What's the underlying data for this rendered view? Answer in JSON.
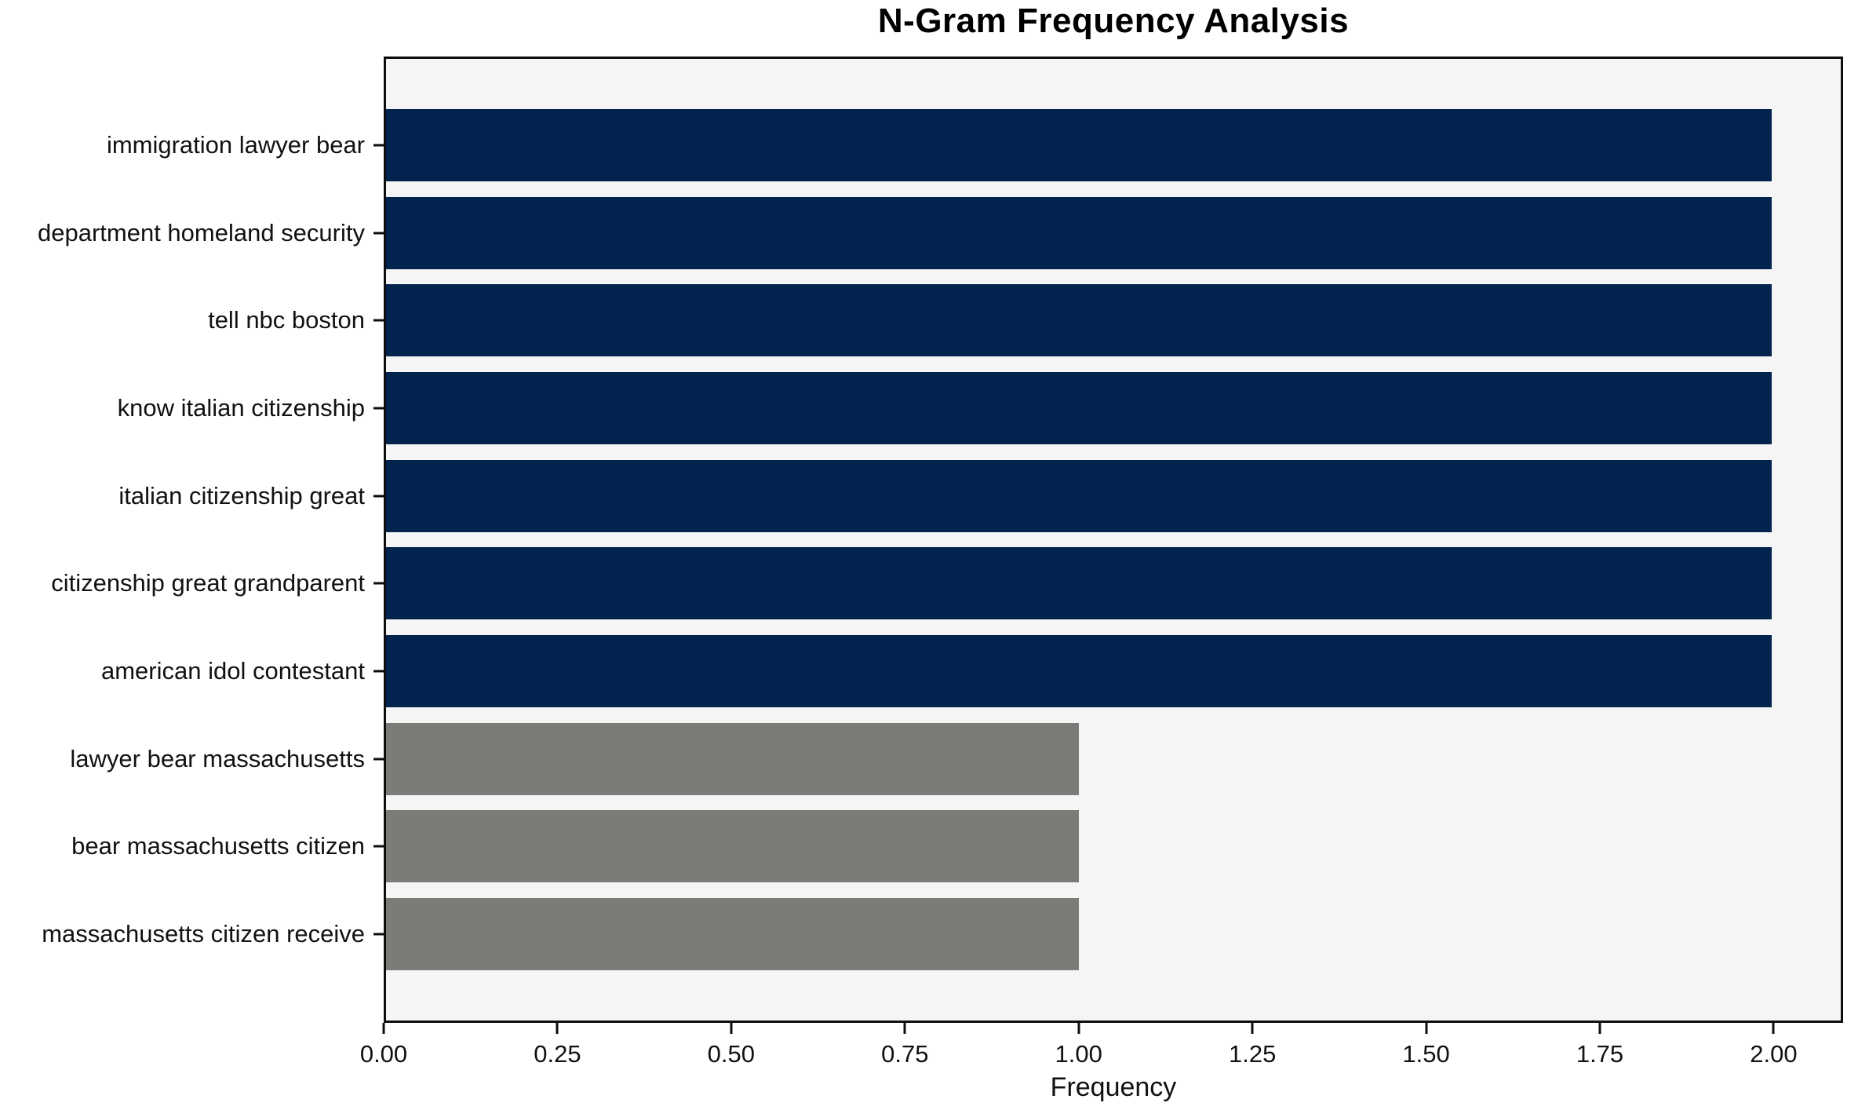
{
  "chart_data": {
    "type": "bar",
    "orientation": "horizontal",
    "title": "N-Gram Frequency Analysis",
    "xlabel": "Frequency",
    "ylabel": "",
    "categories": [
      "immigration lawyer bear",
      "department homeland security",
      "tell nbc boston",
      "know italian citizenship",
      "italian citizenship great",
      "citizenship great grandparent",
      "american idol contestant",
      "lawyer bear massachusetts",
      "bear massachusetts citizen",
      "massachusetts citizen receive"
    ],
    "values": [
      2,
      2,
      2,
      2,
      2,
      2,
      2,
      1,
      1,
      1
    ],
    "bar_colors": [
      "#02234e",
      "#02234e",
      "#02234e",
      "#02234e",
      "#02234e",
      "#02234e",
      "#02234e",
      "#7b7b78",
      "#7b7b78",
      "#7b7b78"
    ],
    "xlim": [
      0,
      2.1
    ],
    "xticks": [
      "0.00",
      "0.25",
      "0.50",
      "0.75",
      "1.00",
      "1.25",
      "1.50",
      "1.75",
      "2.00"
    ],
    "xtick_values": [
      0,
      0.25,
      0.5,
      0.75,
      1.0,
      1.25,
      1.5,
      1.75,
      2.0
    ],
    "grid": false,
    "legend_position": "none",
    "colors": {
      "high_value_bar": "#02234e",
      "low_value_bar": "#7b7b78",
      "plot_background": "#f5f5f5",
      "figure_background": "#ffffff",
      "frame": "#0d0d0d",
      "text": "#111111"
    }
  }
}
